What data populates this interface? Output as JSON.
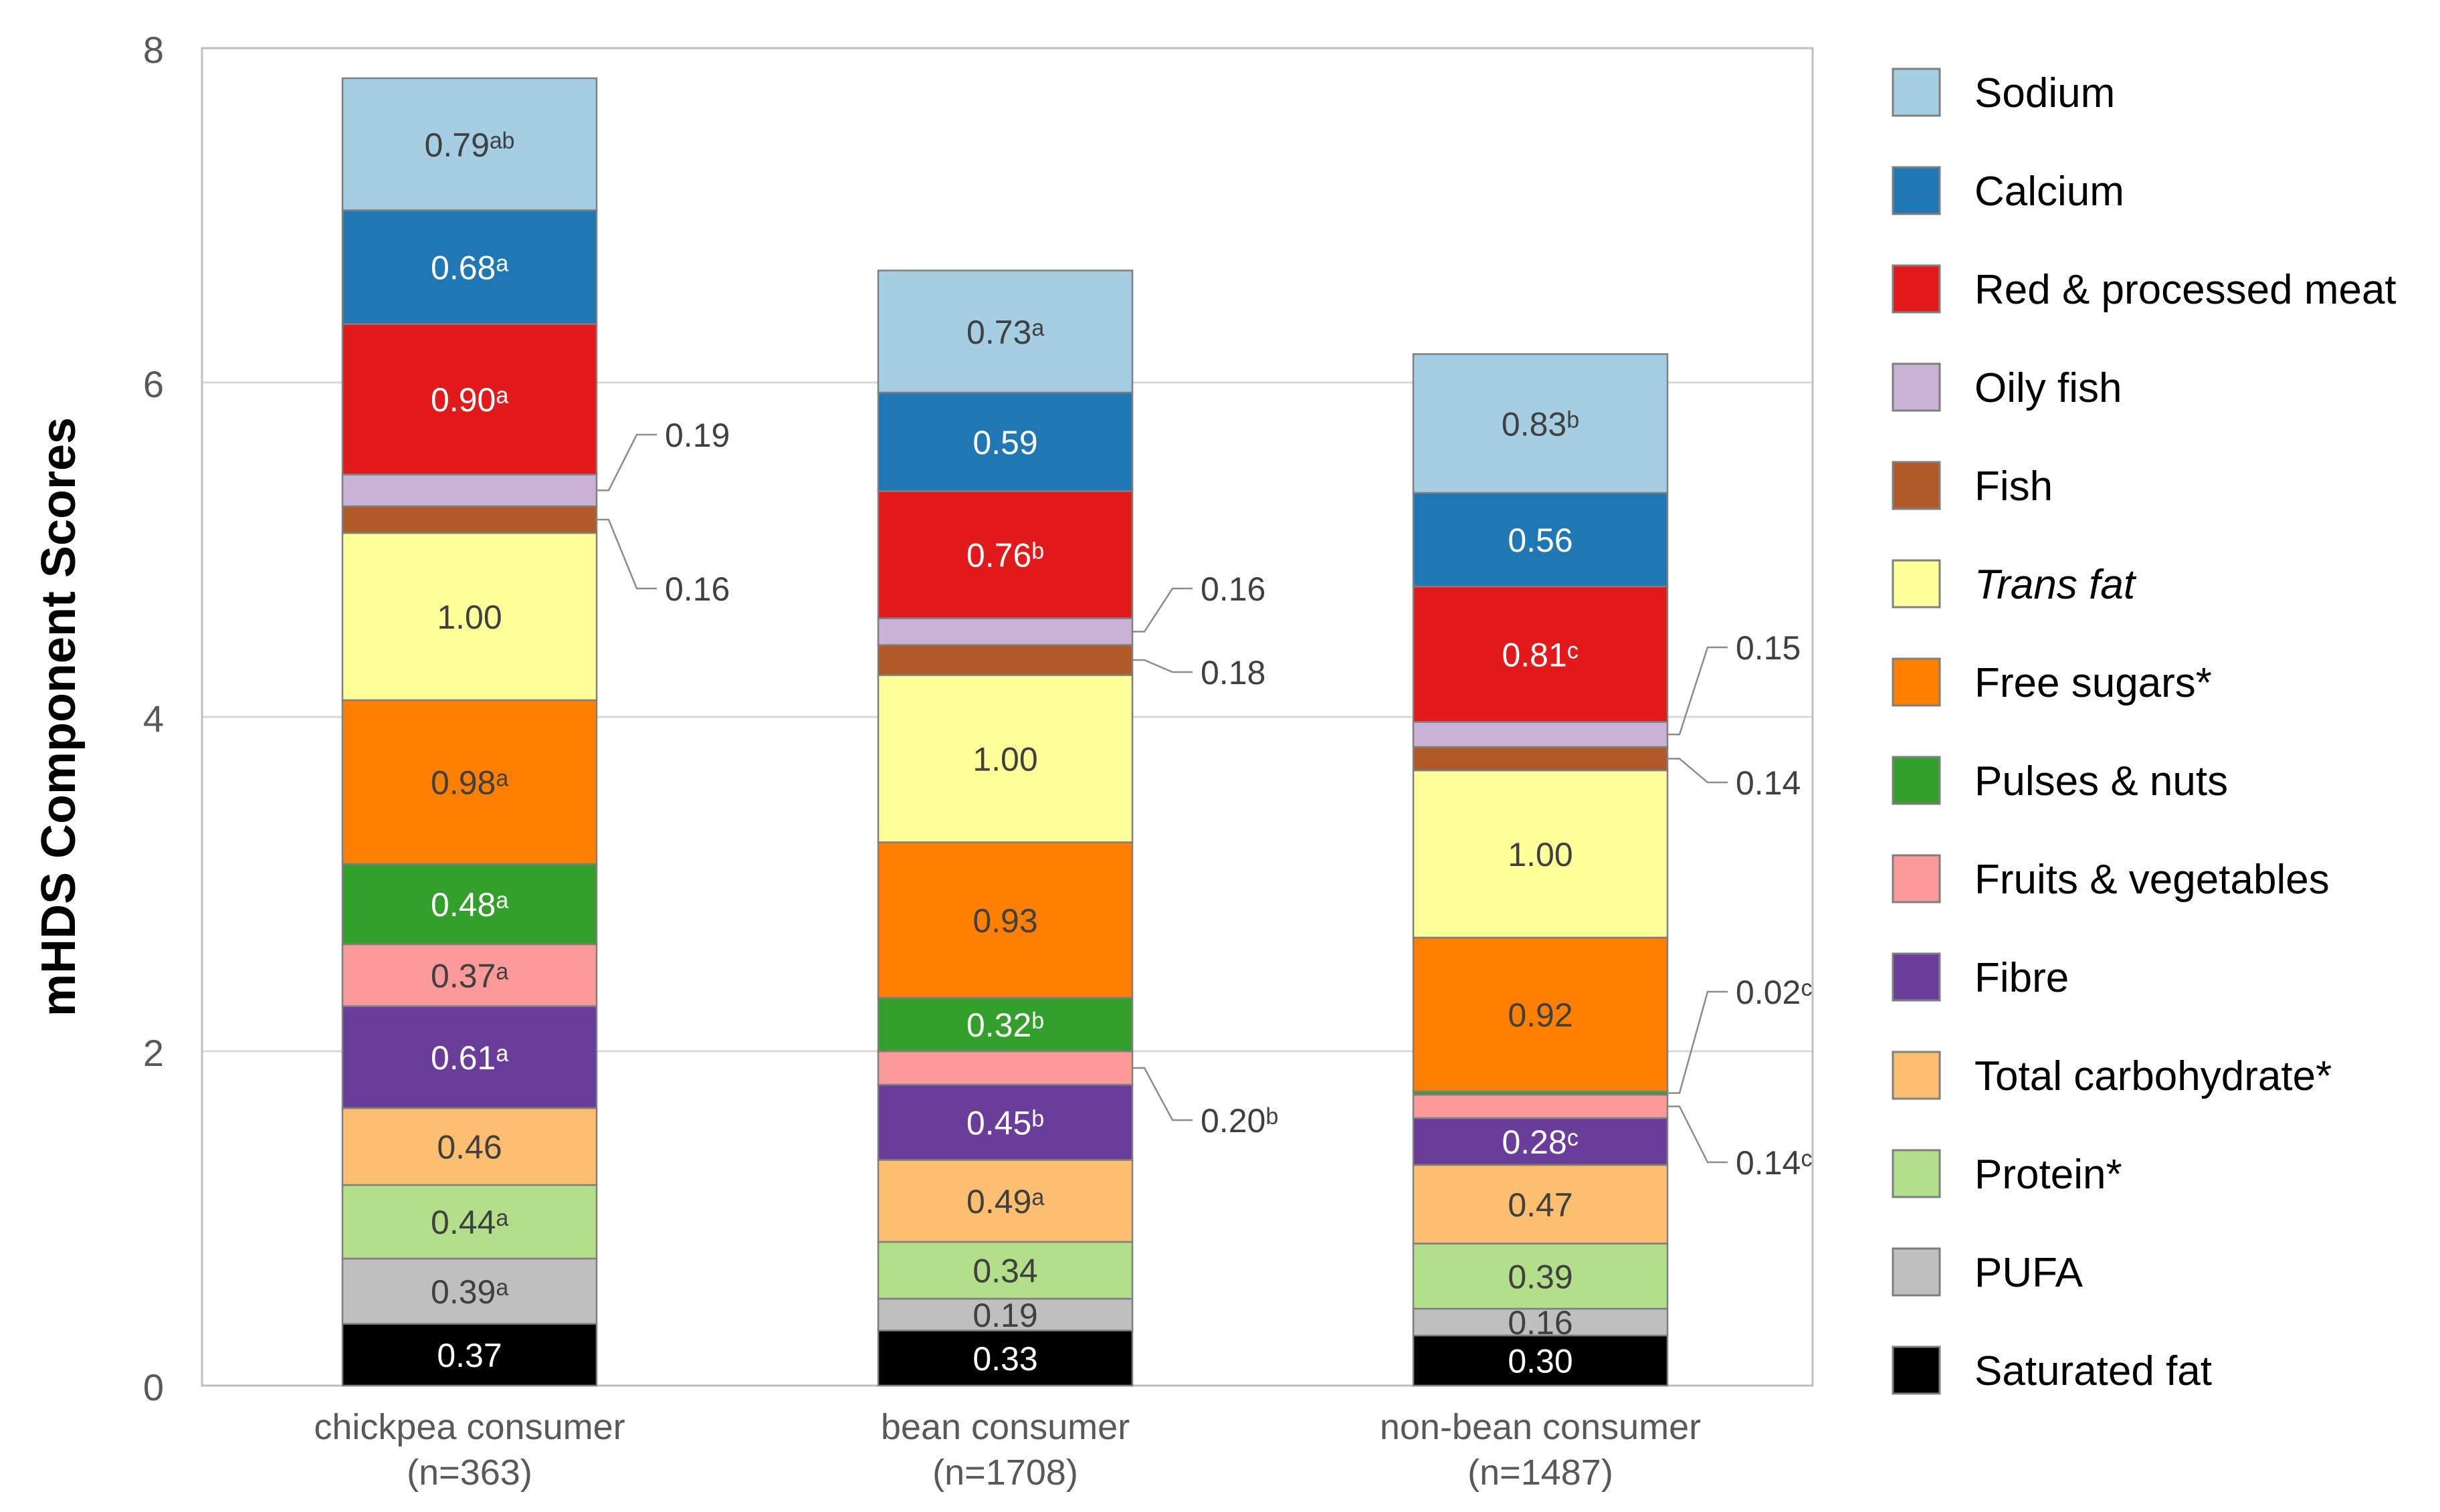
{
  "chart_data": {
    "type": "bar",
    "stacked": true,
    "title": "",
    "xlabel": "",
    "ylabel": "mHDS Component Scores",
    "ylim": [
      0,
      8
    ],
    "yticks": [
      "0",
      "2",
      "4",
      "6",
      "8"
    ],
    "grid": true,
    "legend_position": "right",
    "categories": [
      {
        "name": "chickpea consumer",
        "n": "(n=363)"
      },
      {
        "name": "bean consumer",
        "n": "(n=1708)"
      },
      {
        "name": "non-bean consumer",
        "n": "(n=1487)"
      }
    ],
    "series": [
      {
        "name": "Saturated fat",
        "color": "#000000",
        "values": [
          0.37,
          0.33,
          0.3
        ],
        "labels": [
          "0.37",
          "0.33",
          "0.30"
        ]
      },
      {
        "name": "PUFA",
        "color": "#bfbfbf",
        "values": [
          0.39,
          0.19,
          0.16
        ],
        "labels": [
          "0.39ᵃ",
          "0.19",
          "0.16"
        ]
      },
      {
        "name": "Protein*",
        "color": "#b3df8a",
        "values": [
          0.44,
          0.34,
          0.39
        ],
        "labels": [
          "0.44ᵃ",
          "0.34",
          "0.39"
        ]
      },
      {
        "name": "Total carbohydrate*",
        "color": "#fdbf6f",
        "values": [
          0.46,
          0.49,
          0.47
        ],
        "labels": [
          "0.46",
          "0.49ᵃ",
          "0.47"
        ]
      },
      {
        "name": "Fibre",
        "color": "#6a3d9a",
        "values": [
          0.61,
          0.45,
          0.28
        ],
        "labels": [
          "0.61ᵃ",
          "0.45ᵇ",
          "0.28ᶜ"
        ]
      },
      {
        "name": "Fruits & vegetables",
        "color": "#fb9a99",
        "values": [
          0.37,
          0.2,
          0.14
        ],
        "labels": [
          "0.37ᵃ",
          "0.20ᵇ",
          "0.14ᶜ"
        ]
      },
      {
        "name": "Pulses & nuts",
        "color": "#33a02c",
        "values": [
          0.48,
          0.32,
          0.02
        ],
        "labels": [
          "0.48ᵃ",
          "0.32ᵇ",
          "0.02ᶜ"
        ]
      },
      {
        "name": "Free sugars*",
        "color": "#ff7f00",
        "values": [
          0.98,
          0.93,
          0.92
        ],
        "labels": [
          "0.98ᵃ",
          "0.93",
          "0.92"
        ]
      },
      {
        "name": "Trans fat",
        "color": "#ffff99",
        "values": [
          1.0,
          1.0,
          1.0
        ],
        "labels": [
          "1.00",
          "1.00",
          "1.00"
        ]
      },
      {
        "name": "Fish",
        "color": "#b15928",
        "values": [
          0.16,
          0.18,
          0.14
        ],
        "labels": [
          "0.16",
          "0.18",
          "0.14"
        ]
      },
      {
        "name": "Oily fish",
        "color": "#cab2d6",
        "values": [
          0.19,
          0.16,
          0.15
        ],
        "labels": [
          "0.19",
          "0.16",
          "0.15"
        ]
      },
      {
        "name": "Red & processed meat",
        "color": "#e31a1c",
        "values": [
          0.9,
          0.76,
          0.81
        ],
        "labels": [
          "0.90ᵃ",
          "0.76ᵇ",
          "0.81ᶜ"
        ]
      },
      {
        "name": "Calcium",
        "color": "#1f78b4",
        "values": [
          0.68,
          0.59,
          0.56
        ],
        "labels": [
          "0.68ᵃ",
          "0.59",
          "0.56"
        ]
      },
      {
        "name": "Sodium",
        "color": "#a6cee3",
        "values": [
          0.79,
          0.73,
          0.83
        ],
        "labels": [
          "0.79ᵃᵇ",
          "0.73ᵃ",
          "0.83ᵇ"
        ]
      }
    ],
    "legend_order": [
      "Sodium",
      "Calcium",
      "Red & processed meat",
      "Oily fish",
      "Fish",
      "Trans fat",
      "Free sugars*",
      "Pulses & nuts",
      "Fruits & vegetables",
      "Fibre",
      "Total carbohydrate*",
      "Protein*",
      "PUFA",
      "Saturated fat"
    ],
    "white_label_series": [
      "Saturated fat",
      "Fibre",
      "Pulses & nuts",
      "Red & processed meat",
      "Calcium"
    ],
    "callout_series": [
      [
        "Oily fish",
        "Fish"
      ],
      [
        "Oily fish",
        "Fish",
        "Fruits & vegetables"
      ],
      [
        "Oily fish",
        "Fish",
        "Pulses & nuts",
        "Fruits & vegetables"
      ]
    ]
  }
}
